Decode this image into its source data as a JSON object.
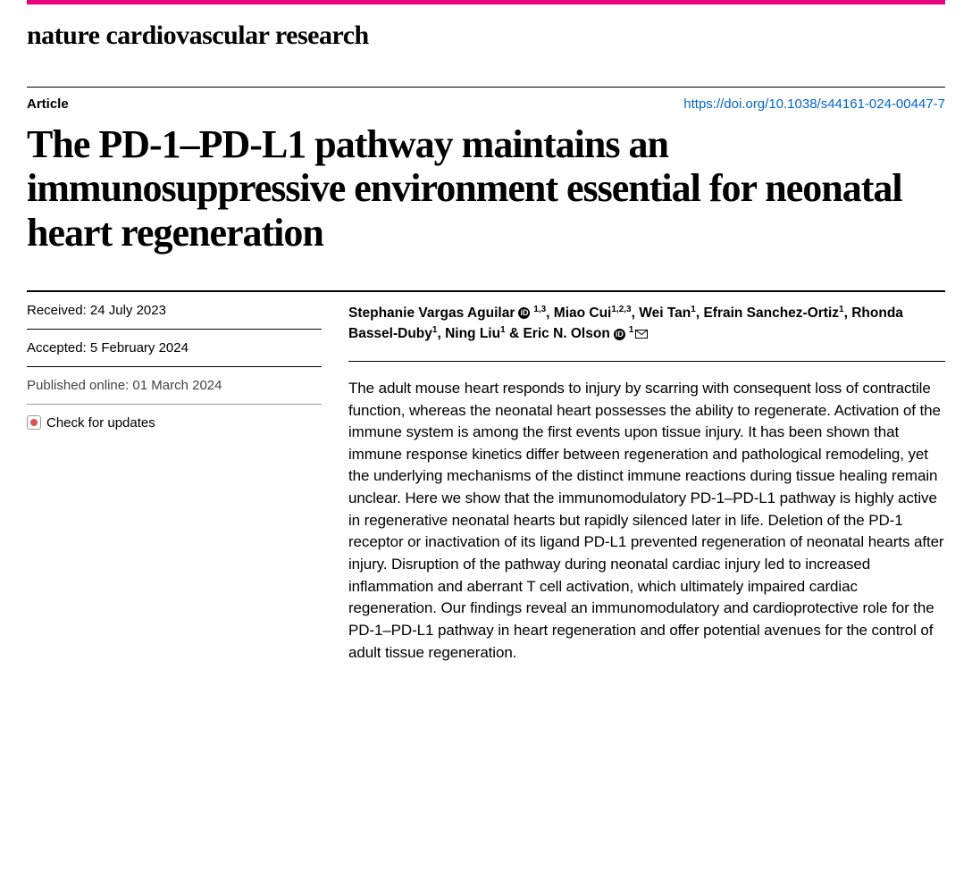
{
  "journal": "nature cardiovascular research",
  "article_type": "Article",
  "doi": "https://doi.org/10.1038/s44161-024-00447-7",
  "title": "The PD-1–PD-L1 pathway maintains an immunosuppressive environment essential for neonatal heart regeneration",
  "dates": {
    "received": "Received: 24 July 2023",
    "accepted": "Accepted: 5 February 2024",
    "published": "Published online: 01 March 2024"
  },
  "updates_label": "Check for updates",
  "authors": [
    {
      "name": "Stephanie Vargas Aguilar",
      "affil": "1,3",
      "orcid": true,
      "mail": false,
      "sep": ", "
    },
    {
      "name": "Miao Cui",
      "affil": "1,2,3",
      "orcid": false,
      "mail": false,
      "sep": ", "
    },
    {
      "name": "Wei Tan",
      "affil": "1",
      "orcid": false,
      "mail": false,
      "sep": ", "
    },
    {
      "name": "Efrain Sanchez-Ortiz",
      "affil": "1",
      "orcid": false,
      "mail": false,
      "sep": ", "
    },
    {
      "name": "Rhonda Bassel-Duby",
      "affil": "1",
      "orcid": false,
      "mail": false,
      "sep": ", "
    },
    {
      "name": "Ning Liu",
      "affil": "1",
      "orcid": false,
      "mail": false,
      "sep": " & "
    },
    {
      "name": "Eric N. Olson",
      "affil": "1",
      "orcid": true,
      "mail": true,
      "sep": ""
    }
  ],
  "abstract": "The adult mouse heart responds to injury by scarring with consequent loss of contractile function, whereas the neonatal heart possesses the ability to regenerate. Activation of the immune system is among the first events upon tissue injury. It has been shown that immune response kinetics differ between regeneration and pathological remodeling, yet the underlying mechanisms of the distinct immune reactions during tissue healing remain unclear. Here we show that the immunomodulatory PD-1–PD-L1 pathway is highly active in regenerative neonatal hearts but rapidly silenced later in life. Deletion of the PD-1 receptor or inactivation of its ligand PD-L1 prevented regeneration of neonatal hearts after injury. Disruption of the pathway during neonatal cardiac injury led to increased inflammation and aberrant T cell activation, which ultimately impaired cardiac regeneration. Our findings reveal an immunomodulatory and cardioprotective role for the PD-1–PD-L1 pathway in heart regeneration and offer potential avenues for the control of adult tissue regeneration.",
  "colors": {
    "accent": "#e6007e",
    "link": "#0066cc"
  }
}
